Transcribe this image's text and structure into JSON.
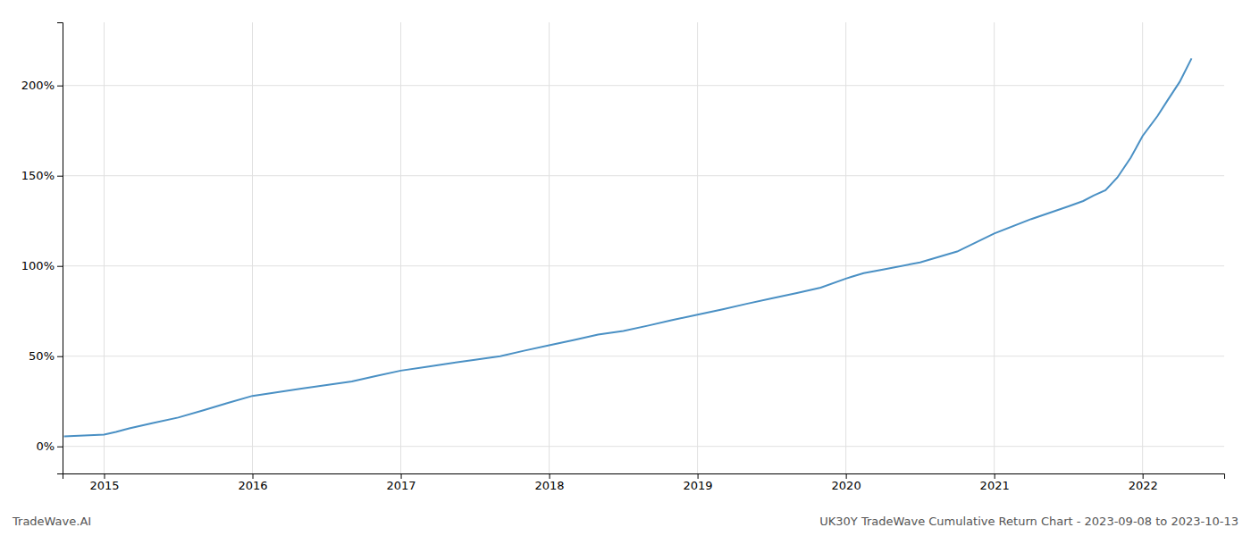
{
  "chart_data": {
    "type": "line",
    "title": "UK30Y TradeWave Cumulative Return Chart - 2023-09-08 to 2023-10-13",
    "annotations": [
      "TradeWave.AI"
    ],
    "color": "#4a90c4",
    "grid": true,
    "x": [
      2014.73,
      2015.0,
      2015.08,
      2015.17,
      2015.33,
      2015.5,
      2015.67,
      2015.83,
      2016.0,
      2016.17,
      2016.33,
      2016.5,
      2016.67,
      2016.83,
      2017.0,
      2017.17,
      2017.33,
      2017.5,
      2017.67,
      2017.83,
      2018.0,
      2018.17,
      2018.33,
      2018.5,
      2018.67,
      2018.83,
      2019.0,
      2019.17,
      2019.33,
      2019.5,
      2019.67,
      2019.83,
      2020.0,
      2020.04,
      2020.08,
      2020.12,
      2020.25,
      2020.5,
      2020.75,
      2021.0,
      2021.25,
      2021.5,
      2021.6,
      2021.67,
      2021.75,
      2021.83,
      2021.92,
      2022.0,
      2022.1,
      2022.17,
      2022.25,
      2022.33
    ],
    "values": [
      5.5,
      6.5,
      8,
      10,
      13,
      16,
      20,
      24,
      28,
      30,
      32,
      34,
      36,
      39,
      42,
      44,
      46,
      48,
      50,
      53,
      56,
      59,
      62,
      64,
      67,
      70,
      73,
      76,
      79,
      82,
      85,
      88,
      93,
      94,
      95,
      96,
      98,
      102,
      108,
      118,
      126,
      133,
      136,
      139,
      142,
      149,
      160,
      172,
      183,
      192,
      202,
      215
    ],
    "xlim": [
      2014.72,
      2022.55
    ],
    "xticks": [
      2015,
      2016,
      2017,
      2018,
      2019,
      2020,
      2021,
      2022
    ],
    "ylim": [
      -15,
      235
    ],
    "yticks": [
      {
        "value": 0,
        "label": "0%"
      },
      {
        "value": 50,
        "label": "50%"
      },
      {
        "value": 100,
        "label": "100%"
      },
      {
        "value": 150,
        "label": "150%"
      },
      {
        "value": 200,
        "label": "200%"
      }
    ]
  }
}
